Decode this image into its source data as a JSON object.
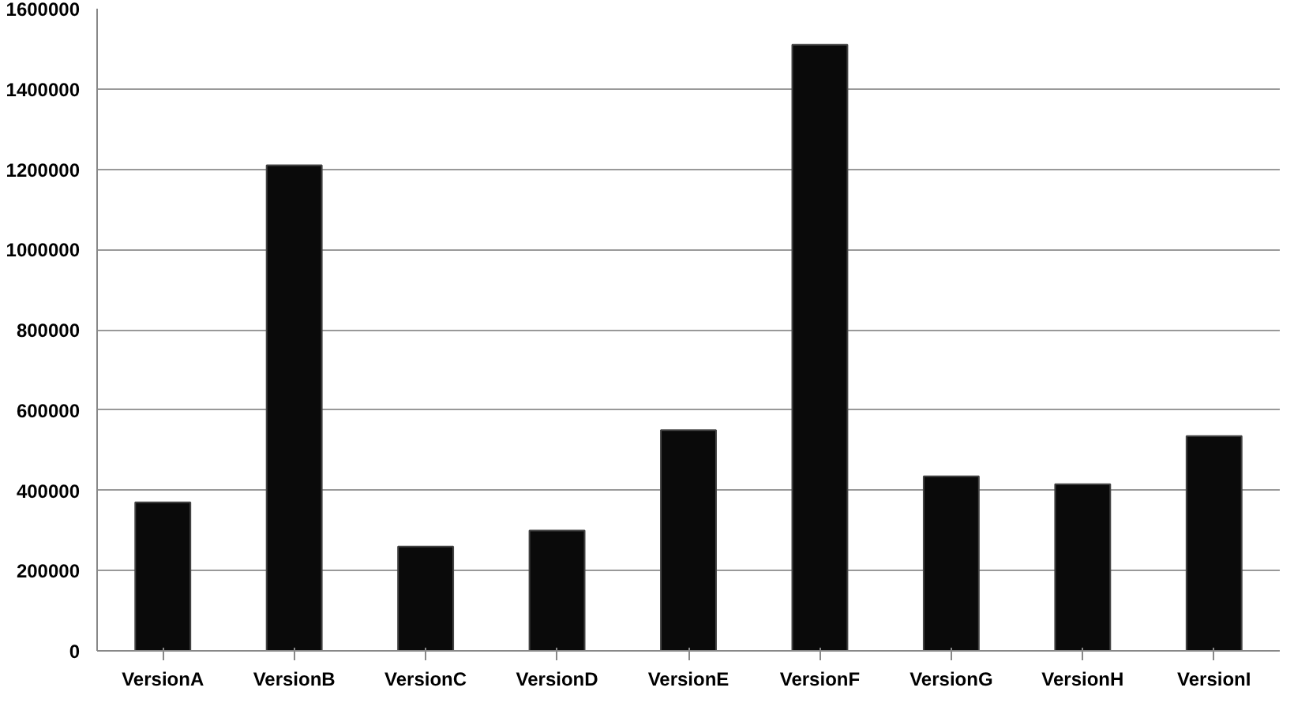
{
  "chart_data": {
    "type": "bar",
    "categories": [
      "VersionA",
      "VersionB",
      "VersionC",
      "VersionD",
      "VersionE",
      "VersionF",
      "VersionG",
      "VersionH",
      "VersionI"
    ],
    "values": [
      370000,
      1210000,
      260000,
      300000,
      550000,
      1510000,
      435000,
      415000,
      535000
    ],
    "color": "#0a0a0a",
    "ylim": [
      0,
      1600000
    ],
    "yticks": [
      0,
      200000,
      400000,
      600000,
      800000,
      1000000,
      1200000,
      1400000,
      1600000
    ],
    "grid": "y"
  }
}
